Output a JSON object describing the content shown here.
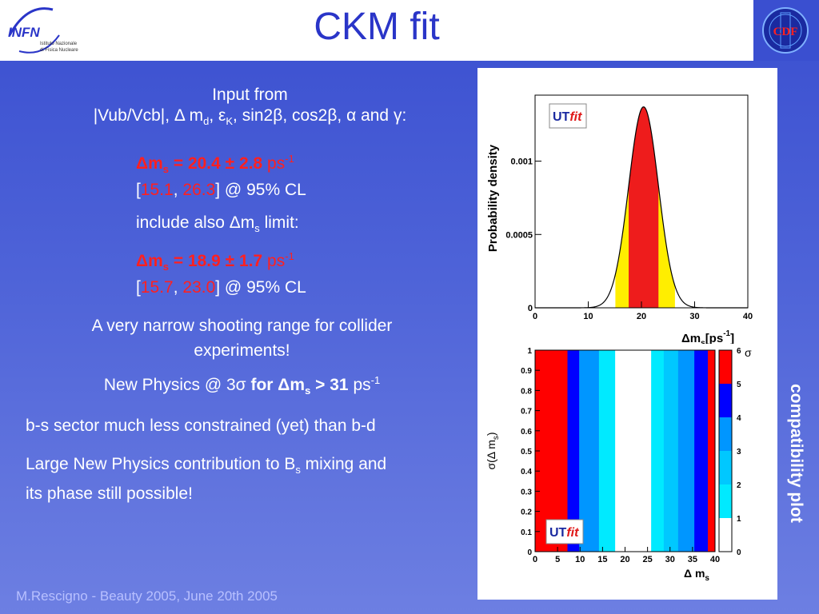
{
  "header": {
    "title": "CKM fit",
    "logo_left_text": "INFN",
    "logo_left_sub1": "Istituto Nazionale",
    "logo_left_sub2": "di Fisica Nucleare",
    "logo_right_text": "CDF"
  },
  "content": {
    "input_line1": "Input from",
    "input_line2_a": "|Vub/Vcb|, Δ m",
    "input_line2_sub_d": "d",
    "input_line2_b": ", ε",
    "input_line2_sub_k": "K",
    "input_line2_c": ", sin2β, cos2β, α and γ:",
    "fit1_prefix": "Δm",
    "fit1_sub": "s",
    "fit1_value": " = 20.4 ± 2.8 ",
    "fit1_unit": "ps",
    "fit1_unit_sup": "-1",
    "fit1_range_open": "[",
    "fit1_low": "15.1",
    "fit1_comma": ", ",
    "fit1_high": "26.3",
    "fit1_range_close": "] @ 95% CL",
    "include_a": "include also Δm",
    "include_sub": "s",
    "include_b": " limit:",
    "fit2_prefix": "Δm",
    "fit2_sub": "s",
    "fit2_value": " = 18.9 ± 1.7 ",
    "fit2_unit": "ps",
    "fit2_unit_sup": "-1",
    "fit2_low": "15.7",
    "fit2_high": "23.0",
    "fit2_range_close": "] @ 95% CL",
    "narrow_line1": "A very narrow shooting range for collider",
    "narrow_line2": "experiments!",
    "np_a": "New Physics @ 3σ  ",
    "np_bold": "for Δm",
    "np_sub": "s",
    "np_bold2": " > 31",
    "np_unit": " ps",
    "np_sup": "-1",
    "bs_line": "b-s sector much less constrained (yet) than b-d",
    "large_a": "Large New Physics contribution to B",
    "large_sub": "s",
    "large_b": " mixing and",
    "large_line2": "its phase still possible!"
  },
  "side_label": "compatibility plot",
  "footer": "M.Rescigno - Beauty 2005,  June 20th 2005",
  "chart_data": [
    {
      "type": "area",
      "ylabel": "Probability density",
      "xlabel": "Δm",
      "xlabel_sub": "s",
      "xlabel_unit": "[ps",
      "xlabel_unit_sup": "-1",
      "xlabel_unit_close": "]",
      "xlim": [
        0,
        40
      ],
      "ylim": [
        0,
        0.00145
      ],
      "xticks": [
        "0",
        "10",
        "20",
        "30",
        "40"
      ],
      "yticks": [
        {
          "v": 0,
          "label": "0"
        },
        {
          "v": 0.0005,
          "label": "0.0005"
        },
        {
          "v": 0.001,
          "label": "0.001"
        }
      ],
      "gaussian": {
        "mean": 20.4,
        "sigma": 2.8,
        "peak": 0.00137
      },
      "bands": [
        {
          "from": 15.1,
          "to": 26.3,
          "color": "#ffee00",
          "label": "95%"
        },
        {
          "from": 17.6,
          "to": 23.2,
          "color": "#ee1c1c",
          "label": "68%"
        }
      ],
      "badge": "UTfit",
      "badge_a": "UT",
      "badge_b": "fit"
    },
    {
      "type": "heatmap",
      "ylabel": "σ(Δ m",
      "ylabel_sub": "s",
      "ylabel_close": ")",
      "xlabel": "Δ m",
      "xlabel_sub": "s",
      "xlim": [
        0,
        40
      ],
      "ylim": [
        0,
        1
      ],
      "xticks": [
        "0",
        "5",
        "10",
        "15",
        "20",
        "25",
        "30",
        "35",
        "40"
      ],
      "yticks": [
        "0",
        "0.1",
        "0.2",
        "0.3",
        "0.4",
        "0.5",
        "0.6",
        "0.7",
        "0.8",
        "0.9",
        "1"
      ],
      "colorbar_ticks": [
        "0",
        "1",
        "2",
        "3",
        "4",
        "5",
        "6"
      ],
      "colorbar_title": "σ",
      "colorbar": [
        {
          "from": 0,
          "to": 1,
          "color": "#ffffff"
        },
        {
          "from": 1,
          "to": 2,
          "color": "#00eaff"
        },
        {
          "from": 2,
          "to": 3,
          "color": "#00c8ff"
        },
        {
          "from": 3,
          "to": 4,
          "color": "#0096ff"
        },
        {
          "from": 4,
          "to": 5,
          "color": "#0000ff"
        },
        {
          "from": 5,
          "to": 6,
          "color": "#ff0000"
        }
      ],
      "columns": [
        {
          "from": 0,
          "to": 7.2,
          "color": "#ff0000"
        },
        {
          "from": 7.2,
          "to": 9.8,
          "color": "#0000ff"
        },
        {
          "from": 9.8,
          "to": 14.2,
          "color": "#0096ff"
        },
        {
          "from": 14.2,
          "to": 17.8,
          "color": "#00eaff"
        },
        {
          "from": 17.8,
          "to": 25.8,
          "color": "#ffffff"
        },
        {
          "from": 25.8,
          "to": 28.6,
          "color": "#00eaff"
        },
        {
          "from": 28.6,
          "to": 31.8,
          "color": "#00c8ff"
        },
        {
          "from": 31.8,
          "to": 35.4,
          "color": "#0096ff"
        },
        {
          "from": 35.4,
          "to": 38.4,
          "color": "#0000ff"
        },
        {
          "from": 38.4,
          "to": 40,
          "color": "#ff0000"
        }
      ],
      "badge": "UTfit",
      "badge_a": "UT",
      "badge_b": "fit"
    }
  ],
  "colors": {
    "accent_title": "#2a35c8",
    "highlight": "#ff2020",
    "background": "#4e63d8"
  }
}
